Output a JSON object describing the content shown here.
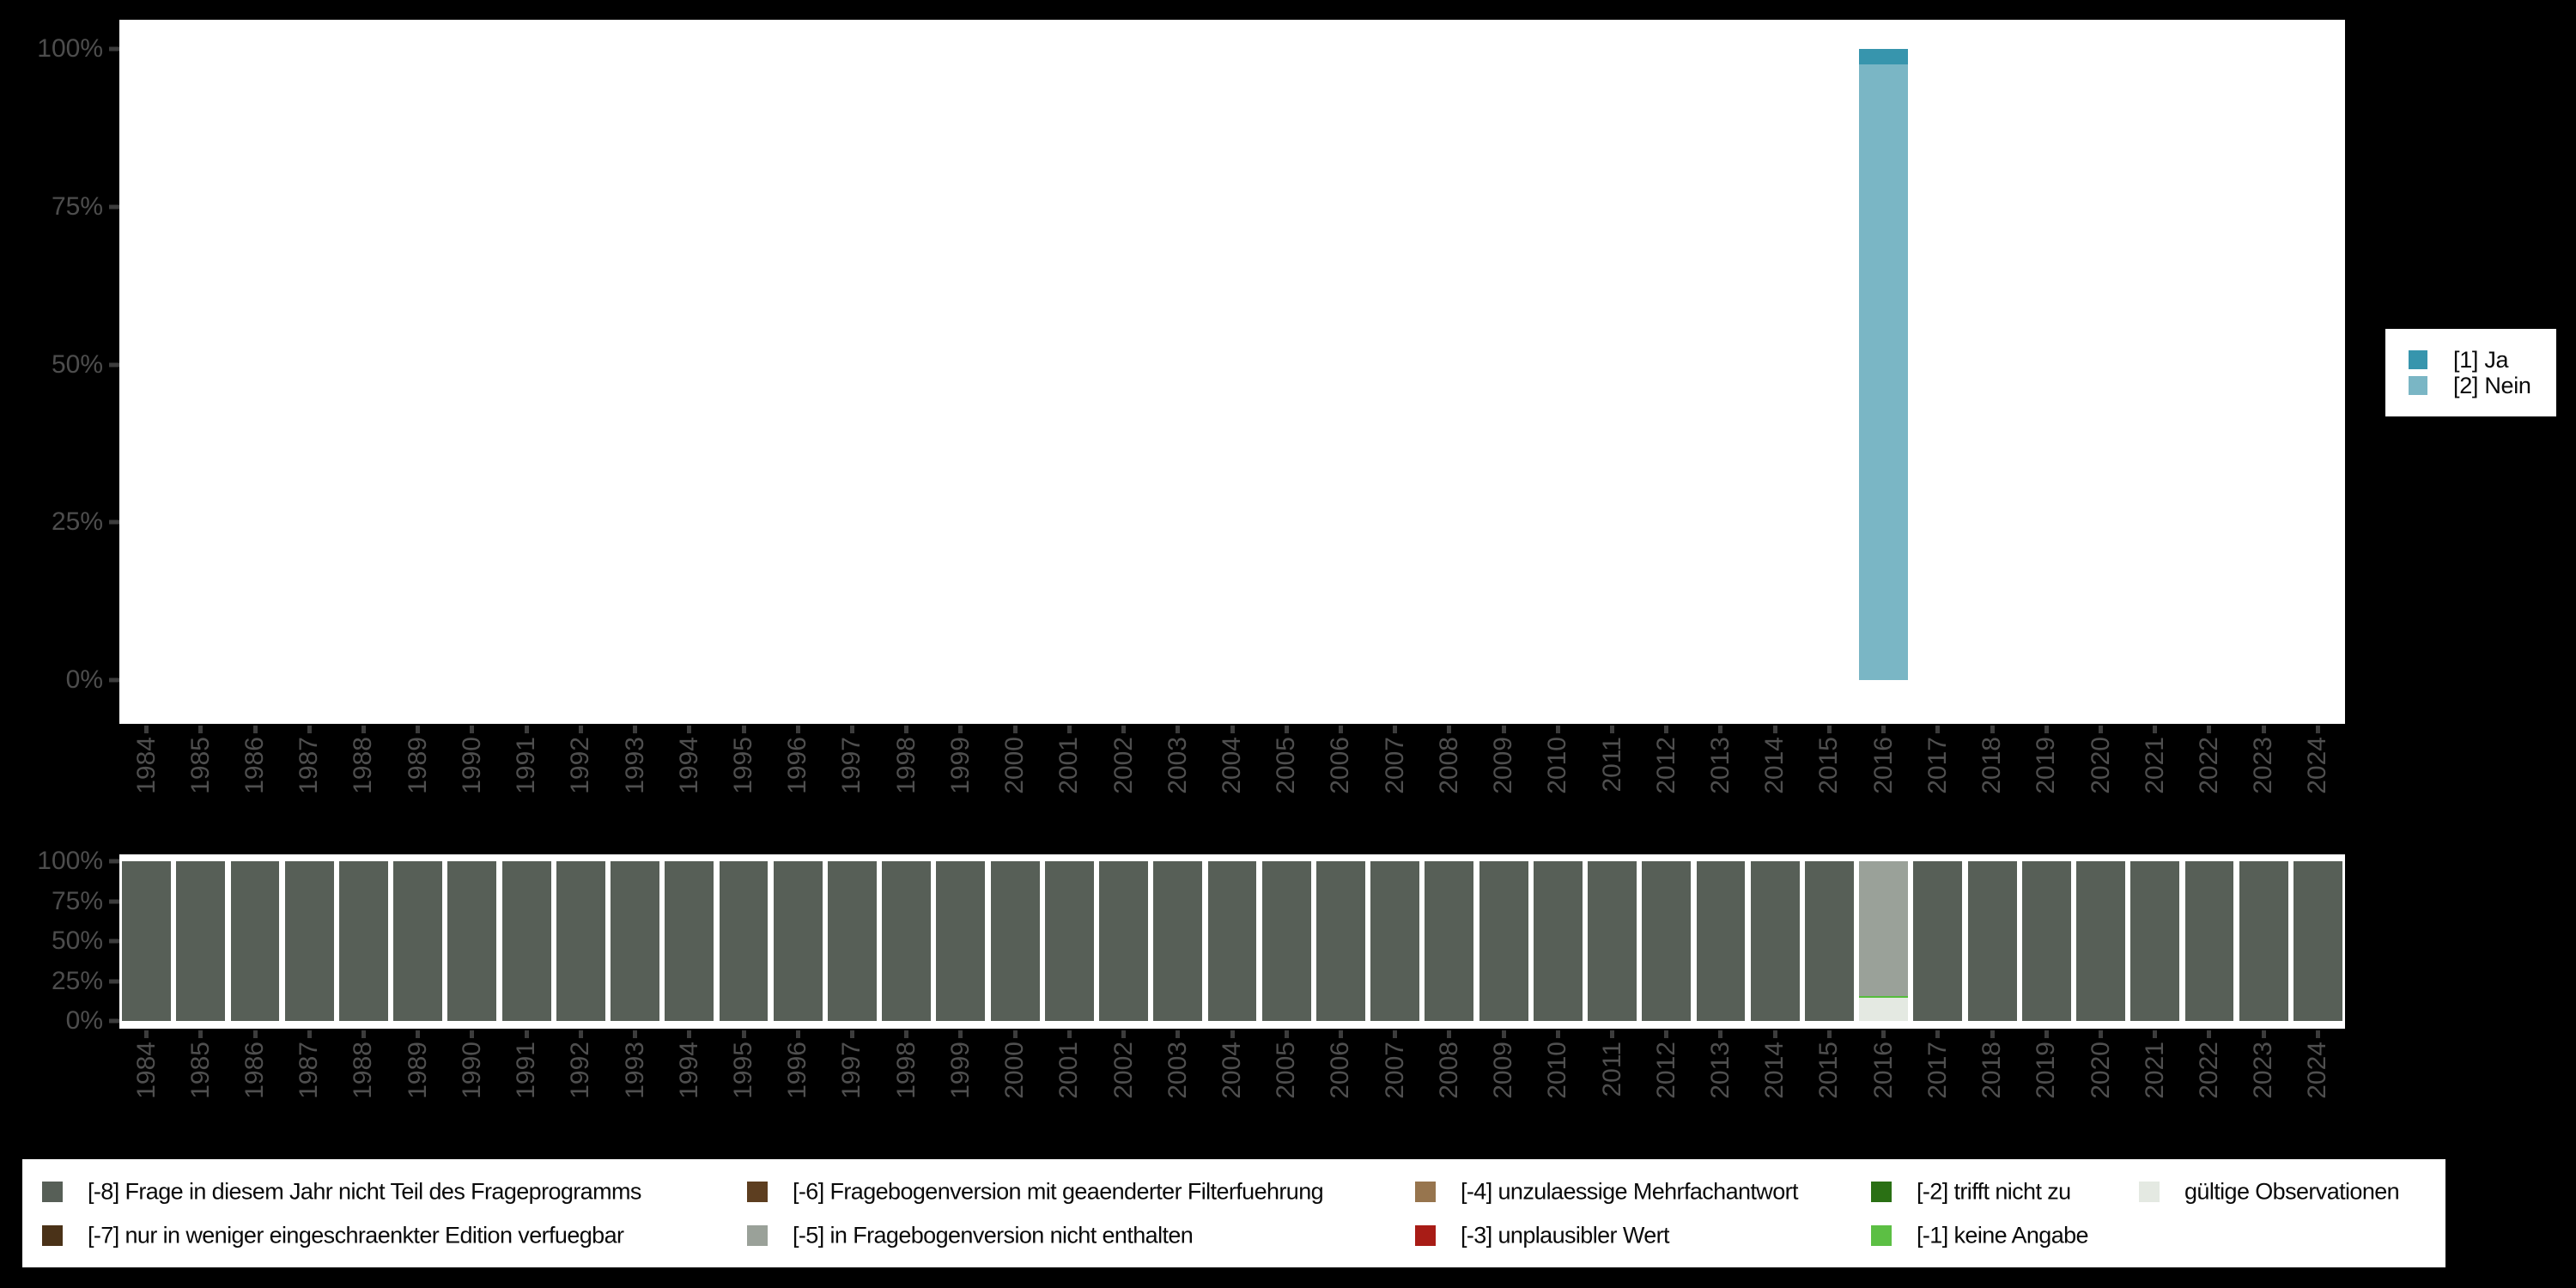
{
  "background_color": "#000000",
  "plot_background_color": "#ffffff",
  "axis": {
    "text_color": "#4d4d4d",
    "tick_color": "#3c3c3c",
    "y_tick_labels": [
      "0%",
      "25%",
      "50%",
      "75%",
      "100%"
    ],
    "x_tick_labels": [
      "1984",
      "1985",
      "1986",
      "1987",
      "1988",
      "1989",
      "1990",
      "1991",
      "1992",
      "1993",
      "1994",
      "1995",
      "1996",
      "1997",
      "1998",
      "1999",
      "2000",
      "2001",
      "2002",
      "2003",
      "2004",
      "2005",
      "2006",
      "2007",
      "2008",
      "2009",
      "2010",
      "2011",
      "2012",
      "2013",
      "2014",
      "2015",
      "2016",
      "2017",
      "2018",
      "2019",
      "2020",
      "2021",
      "2022",
      "2023",
      "2024"
    ]
  },
  "chart_data": [
    {
      "type": "bar",
      "stacked": true,
      "title": "",
      "xlabel": "",
      "ylabel": "",
      "ylim": [
        0,
        100
      ],
      "grid": false,
      "legend_position": "right",
      "y_ticks": [
        "0%",
        "25%",
        "50%",
        "75%",
        "100%"
      ],
      "categories": [
        1984,
        1985,
        1986,
        1987,
        1988,
        1989,
        1990,
        1991,
        1992,
        1993,
        1994,
        1995,
        1996,
        1997,
        1998,
        1999,
        2000,
        2001,
        2002,
        2003,
        2004,
        2005,
        2006,
        2007,
        2008,
        2009,
        2010,
        2011,
        2012,
        2013,
        2014,
        2015,
        2016,
        2017,
        2018,
        2019,
        2020,
        2021,
        2022,
        2023,
        2024
      ],
      "series": [
        {
          "name": "[1] Ja",
          "color": "#3795ad",
          "values": [
            0,
            0,
            0,
            0,
            0,
            0,
            0,
            0,
            0,
            0,
            0,
            0,
            0,
            0,
            0,
            0,
            0,
            0,
            0,
            0,
            0,
            0,
            0,
            0,
            0,
            0,
            0,
            0,
            0,
            0,
            0,
            0,
            2.4,
            0,
            0,
            0,
            0,
            0,
            0,
            0,
            0
          ]
        },
        {
          "name": "[2] Nein",
          "color": "#7ab6c5",
          "values": [
            0,
            0,
            0,
            0,
            0,
            0,
            0,
            0,
            0,
            0,
            0,
            0,
            0,
            0,
            0,
            0,
            0,
            0,
            0,
            0,
            0,
            0,
            0,
            0,
            0,
            0,
            0,
            0,
            0,
            0,
            0,
            0,
            97.6,
            0,
            0,
            0,
            0,
            0,
            0,
            0,
            0
          ]
        }
      ]
    },
    {
      "type": "bar",
      "stacked": true,
      "title": "",
      "xlabel": "",
      "ylabel": "",
      "ylim": [
        0,
        100
      ],
      "grid": false,
      "legend_position": "bottom",
      "y_ticks": [
        "0%",
        "25%",
        "50%",
        "75%",
        "100%"
      ],
      "categories": [
        1984,
        1985,
        1986,
        1987,
        1988,
        1989,
        1990,
        1991,
        1992,
        1993,
        1994,
        1995,
        1996,
        1997,
        1998,
        1999,
        2000,
        2001,
        2002,
        2003,
        2004,
        2005,
        2006,
        2007,
        2008,
        2009,
        2010,
        2011,
        2012,
        2013,
        2014,
        2015,
        2016,
        2017,
        2018,
        2019,
        2020,
        2021,
        2022,
        2023,
        2024
      ],
      "series": [
        {
          "name": "[-8] Frage in diesem Jahr nicht Teil des Frageprogramms",
          "color": "#575f57",
          "values": [
            100,
            100,
            100,
            100,
            100,
            100,
            100,
            100,
            100,
            100,
            100,
            100,
            100,
            100,
            100,
            100,
            100,
            100,
            100,
            100,
            100,
            100,
            100,
            100,
            100,
            100,
            100,
            100,
            100,
            100,
            100,
            100,
            0,
            100,
            100,
            100,
            100,
            100,
            100,
            100,
            100
          ]
        },
        {
          "name": "[-5] in Fragebogenversion nicht enthalten",
          "color": "#9aa199",
          "values": [
            0,
            0,
            0,
            0,
            0,
            0,
            0,
            0,
            0,
            0,
            0,
            0,
            0,
            0,
            0,
            0,
            0,
            0,
            0,
            0,
            0,
            0,
            0,
            0,
            0,
            0,
            0,
            0,
            0,
            0,
            0,
            0,
            84.2,
            0,
            0,
            0,
            0,
            0,
            0,
            0,
            0
          ]
        },
        {
          "name": "[-1] keine Angabe",
          "color": "#55bd3c",
          "values": [
            0,
            0,
            0,
            0,
            0,
            0,
            0,
            0,
            0,
            0,
            0,
            0,
            0,
            0,
            0,
            0,
            0,
            0,
            0,
            0,
            0,
            0,
            0,
            0,
            0,
            0,
            0,
            0,
            0,
            0,
            0,
            0,
            1.3,
            0,
            0,
            0,
            0,
            0,
            0,
            0,
            0
          ]
        },
        {
          "name": "gültige Observationen",
          "color": "#e4e9e2",
          "values": [
            0,
            0,
            0,
            0,
            0,
            0,
            0,
            0,
            0,
            0,
            0,
            0,
            0,
            0,
            0,
            0,
            0,
            0,
            0,
            0,
            0,
            0,
            0,
            0,
            0,
            0,
            0,
            0,
            0,
            0,
            0,
            0,
            14.5,
            0,
            0,
            0,
            0,
            0,
            0,
            0,
            0
          ]
        }
      ]
    }
  ],
  "legend_right": {
    "items": [
      {
        "label": "[1] Ja",
        "color": "#3795ad"
      },
      {
        "label": "[2] Nein",
        "color": "#7ab6c5"
      }
    ]
  },
  "legend_bottom": {
    "columns": [
      [
        {
          "label": "[-8] Frage in diesem Jahr nicht Teil des Frageprogramms",
          "color": "#575f57"
        },
        {
          "label": "[-7] nur in weniger eingeschraenkter Edition verfuegbar",
          "color": "#4a3218"
        }
      ],
      [
        {
          "label": "[-6] Fragebogenversion mit geaenderter Filterfuehrung",
          "color": "#5d3e20"
        },
        {
          "label": "[-5] in Fragebogenversion nicht enthalten",
          "color": "#9aa199"
        }
      ],
      [
        {
          "label": "[-4] unzulaessige Mehrfachantwort",
          "color": "#97754e"
        },
        {
          "label": "[-3] unplausibler Wert",
          "color": "#a81c16"
        }
      ],
      [
        {
          "label": "[-2] trifft nicht zu",
          "color": "#2a7014"
        },
        {
          "label": "[-1] keine Angabe",
          "color": "#5cbf44"
        }
      ],
      [
        {
          "label": "gültige Observationen",
          "color": "#e4e9e2"
        }
      ]
    ]
  }
}
